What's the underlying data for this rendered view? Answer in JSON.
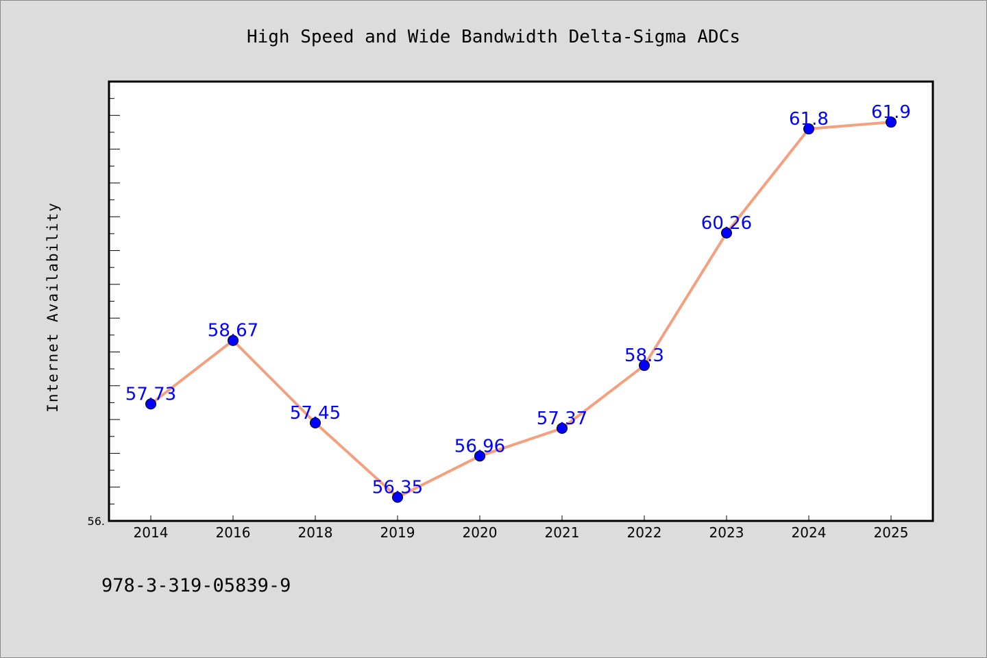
{
  "chart_data": {
    "type": "line",
    "title": "High Speed and Wide Bandwidth Delta-Sigma ADCs",
    "ylabel": "Internet Availability",
    "xlabel": "",
    "categories": [
      "2014",
      "2016",
      "2018",
      "2019",
      "2020",
      "2021",
      "2022",
      "2023",
      "2024",
      "2025"
    ],
    "series": [
      {
        "values": [
          57.73,
          58.67,
          57.45,
          56.35,
          56.96,
          57.37,
          58.3,
          60.26,
          61.8,
          61.9
        ],
        "data_labels": [
          "57.73",
          "58.67",
          "57.45",
          "56.35",
          "56.96",
          "57.37",
          "58.3",
          "60.26",
          "61.8",
          "61.9"
        ]
      }
    ],
    "ylim": [
      56.0,
      62.5
    ],
    "y_tick_label": "56.",
    "grid": false,
    "colors": {
      "line": "#f4a07f",
      "marker": "#0000ff",
      "label": "#0000ff",
      "plot_bg": "#ffffff",
      "page_bg": "#dcdcdc"
    }
  },
  "footer": {
    "isbn": "978-3-319-05839-9"
  }
}
